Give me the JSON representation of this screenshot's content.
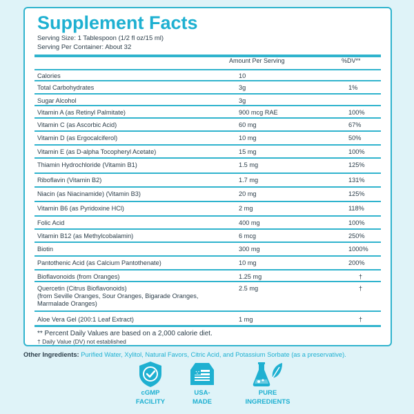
{
  "title": "Supplement Facts",
  "serving_size": "Serving Size: 1 Tablespoon (1/2 fl oz/15 ml)",
  "servings_per_container": "Serving Per Container: About 32",
  "header": {
    "amount": "Amount Per Serving",
    "dv": "%DV**"
  },
  "rows": [
    {
      "name": "Calories",
      "amount": "10",
      "dv": ""
    },
    {
      "name": "Total Carbohydrates",
      "amount": "3g",
      "dv": "1%"
    },
    {
      "name": "Sugar Alcohol",
      "amount": "3g",
      "dv": ""
    },
    {
      "name": "Vitamin A (as Retinyl Palmitate)",
      "amount": "900 mcg RAE",
      "dv": "100%"
    },
    {
      "name": "Vitamin C (as Ascorbic Acid)",
      "amount": "60 mg",
      "dv": "67%"
    },
    {
      "name": "Vitamin D (as Ergocalciferol)",
      "amount": "10 mg",
      "dv": "50%"
    },
    {
      "name": "Vitamin E (as D-alpha Tocopheryl Acetate)",
      "amount": "15 mg",
      "dv": "100%"
    },
    {
      "name": "Thiamin Hydrochloride (Vitamin B1)",
      "amount": "1.5 mg",
      "dv": "125%"
    },
    {
      "name": "Riboflavin (Vitamin B2)",
      "amount": "1.7 mg",
      "dv": "131%"
    },
    {
      "name": "Niacin (as Niacinamide) (Vitamin B3)",
      "amount": "20 mg",
      "dv": "125%"
    },
    {
      "name": "Vitamin B6 (as Pyridoxine HCl)",
      "amount": "2 mg",
      "dv": "118%"
    },
    {
      "name": "Folic Acid",
      "amount": "400 mg",
      "dv": "100%"
    },
    {
      "name": "Vitamin B12 (as Methylcobalamin)",
      "amount": "6 mcg",
      "dv": "250%"
    },
    {
      "name": "Biotin",
      "amount": "300 mg",
      "dv": "1000%"
    },
    {
      "name": "Pantothenic Acid (as Calcium Pantothenate)",
      "amount": "10 mg",
      "dv": "200%"
    },
    {
      "name": "Bioflavonoids (from Oranges)",
      "amount": "1.25 mg",
      "dv": "†"
    },
    {
      "name": "Quercetin (Citrus Bioflavonoids)",
      "sub1": "(from Seville Oranges, Sour Oranges, Bigarade Oranges,",
      "sub2": "Marmalade Oranges)",
      "amount": "2.5 mg",
      "dv": "†"
    },
    {
      "name": "Aloe Vera Gel (200:1 Leaf Extract)",
      "amount": "1 mg",
      "dv": "†"
    }
  ],
  "footnotes": {
    "percent_dv": "** Percent Daily Values are based on a 2,000 calorie diet.",
    "not_established": "† Daily Value (DV) not established"
  },
  "other_ingredients": {
    "label": "Other Ingredients:",
    "text": "Purified Water, Xylitol, Natural Favors, Citric Acid, and Potassium Sorbate (as a preservative)."
  },
  "badges": [
    {
      "icon": "shield-check-icon",
      "line1": "cGMP",
      "line2": "FACILITY"
    },
    {
      "icon": "usa-flag-icon",
      "line1": "USA-",
      "line2": "MADE"
    },
    {
      "icon": "flask-leaf-icon",
      "line1": "PURE",
      "line2": "INGREDIENTS"
    }
  ],
  "colors": {
    "accent": "#1eb0d1",
    "border": "#2fb3cd",
    "background": "#dff3f8",
    "text": "#2a3c48"
  }
}
